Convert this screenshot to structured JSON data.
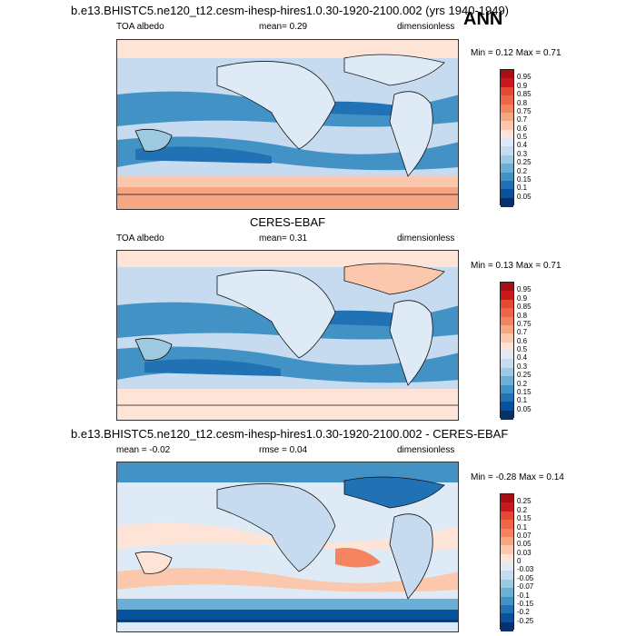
{
  "header": {
    "run_title": "b.e13.BHISTC5.ne120_t12.cesm-ihesp-hires1.0.30-1920-2100.002 (yrs 1940-1949)",
    "season": "ANN"
  },
  "panels": [
    {
      "title": "",
      "left_label": "TOA albedo",
      "center_label": "mean=  0.29",
      "right_label": "dimensionless",
      "minmax": "Min =  0.12 Max =  0.71",
      "colorbar_labels": [
        "0.95",
        "0.9",
        "0.85",
        "0.8",
        "0.75",
        "0.7",
        "0.6",
        "0.5",
        "0.4",
        "0.3",
        "0.25",
        "0.2",
        "0.15",
        "0.1",
        "0.05"
      ],
      "colorbar_colors": [
        "#a50f15",
        "#cb181d",
        "#e34a33",
        "#ef6548",
        "#f4845f",
        "#f7a683",
        "#fbc8ae",
        "#fde4d6",
        "#deebf7",
        "#c6dbef",
        "#9ecae1",
        "#6baed6",
        "#4292c6",
        "#2171b5",
        "#08519c",
        "#08306b"
      ]
    },
    {
      "title": "CERES-EBAF",
      "left_label": "TOA albedo",
      "center_label": "mean=  0.31",
      "right_label": "dimensionless",
      "minmax": "Min =  0.13 Max =  0.71",
      "colorbar_labels": [
        "0.95",
        "0.9",
        "0.85",
        "0.8",
        "0.75",
        "0.7",
        "0.6",
        "0.5",
        "0.4",
        "0.3",
        "0.25",
        "0.2",
        "0.15",
        "0.1",
        "0.05"
      ],
      "colorbar_colors": [
        "#a50f15",
        "#cb181d",
        "#e34a33",
        "#ef6548",
        "#f4845f",
        "#f7a683",
        "#fbc8ae",
        "#fde4d6",
        "#deebf7",
        "#c6dbef",
        "#9ecae1",
        "#6baed6",
        "#4292c6",
        "#2171b5",
        "#08519c",
        "#08306b"
      ]
    },
    {
      "title": "b.e13.BHISTC5.ne120_t12.cesm-ihesp-hires1.0.30-1920-2100.002 - CERES-EBAF",
      "left_label": "mean =  -0.02",
      "center_label": "rmse =  0.04",
      "right_label": "dimensionless",
      "minmax": "Min =  -0.28 Max =  0.14",
      "colorbar_labels": [
        "0.25",
        "0.2",
        "0.15",
        "0.1",
        "0.07",
        "0.05",
        "0.03",
        "0",
        "-0.03",
        "-0.05",
        "-0.07",
        "-0.1",
        "-0.15",
        "-0.2",
        "-0.25"
      ],
      "colorbar_colors": [
        "#a50f15",
        "#cb181d",
        "#e34a33",
        "#ef6548",
        "#f4845f",
        "#f7a683",
        "#fbc8ae",
        "#fde4d6",
        "#deebf7",
        "#c6dbef",
        "#9ecae1",
        "#6baed6",
        "#4292c6",
        "#2171b5",
        "#08519c",
        "#08306b"
      ]
    }
  ]
}
